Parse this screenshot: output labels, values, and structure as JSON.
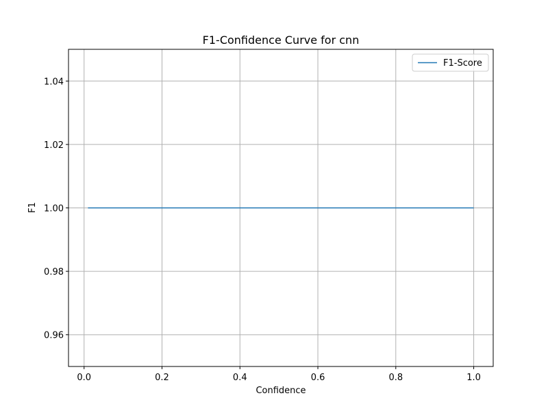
{
  "chart_data": {
    "type": "line",
    "title": "F1-Confidence Curve for cnn",
    "xlabel": "Confidence",
    "ylabel": "F1",
    "xlim": [
      -0.04,
      1.05
    ],
    "ylim": [
      0.95,
      1.05
    ],
    "xticks": [
      0.0,
      0.2,
      0.4,
      0.6,
      0.8,
      1.0
    ],
    "xtick_labels": [
      "0.0",
      "0.2",
      "0.4",
      "0.6",
      "0.8",
      "1.0"
    ],
    "yticks": [
      0.96,
      0.98,
      1.0,
      1.02,
      1.04
    ],
    "ytick_labels": [
      "0.96",
      "0.98",
      "1.00",
      "1.02",
      "1.04"
    ],
    "grid": true,
    "legend_position": "top-right",
    "series": [
      {
        "name": "F1-Score",
        "color": "#1f77b4",
        "x": [
          0.01,
          0.1,
          0.2,
          0.3,
          0.4,
          0.5,
          0.6,
          0.7,
          0.8,
          0.9,
          1.0
        ],
        "y": [
          1.0,
          1.0,
          1.0,
          1.0,
          1.0,
          1.0,
          1.0,
          1.0,
          1.0,
          1.0,
          1.0
        ]
      }
    ]
  }
}
